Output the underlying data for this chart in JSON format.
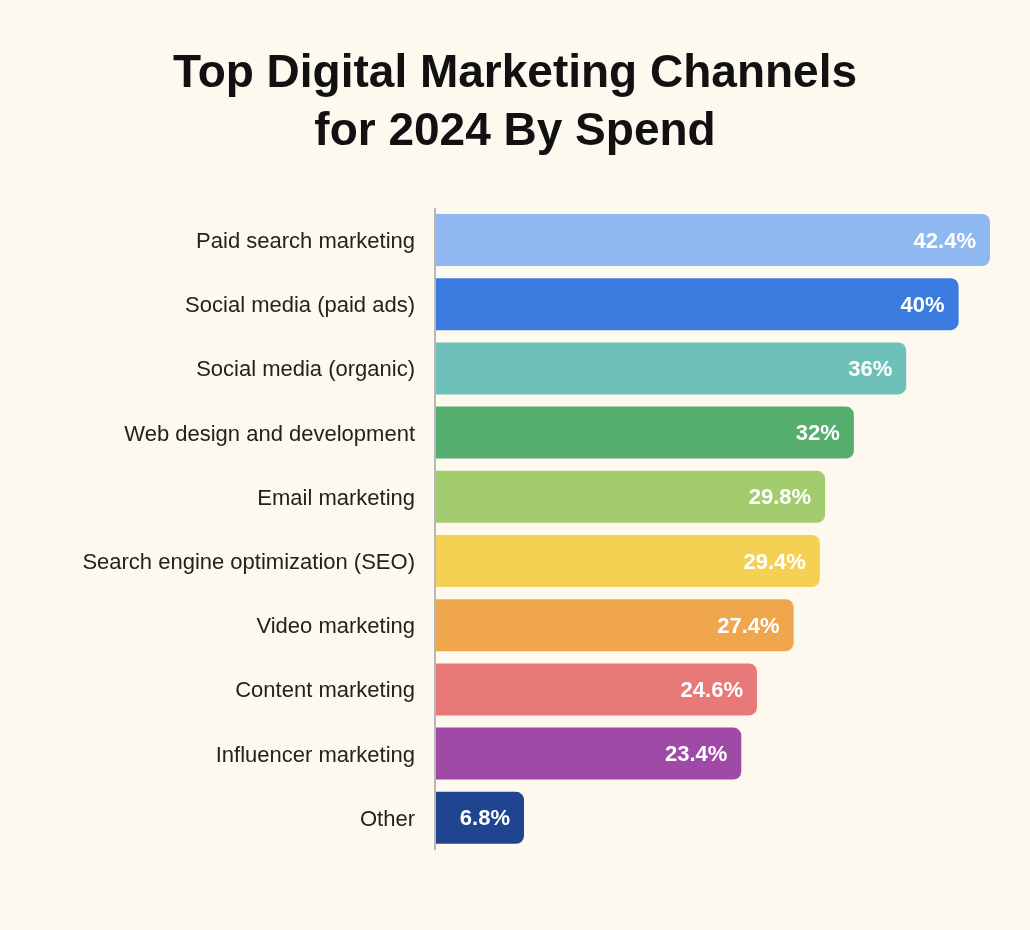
{
  "chart_data": {
    "type": "bar",
    "orientation": "horizontal",
    "title": "Top Digital Marketing Channels for 2024 By Spend",
    "categories": [
      "Paid search marketing",
      "Social media (paid ads)",
      "Social media (organic)",
      "Web design and development",
      "Email marketing",
      "Search engine optimization (SEO)",
      "Video marketing",
      "Content marketing",
      "Influencer marketing",
      "Other"
    ],
    "values": [
      42.4,
      40,
      36,
      32,
      29.8,
      29.4,
      27.4,
      24.6,
      23.4,
      6.8
    ],
    "value_labels": [
      "42.4%",
      "40%",
      "36%",
      "32%",
      "29.8%",
      "29.4%",
      "27.4%",
      "24.6%",
      "23.4%",
      "6.8%"
    ],
    "colors": [
      "#8fb8f0",
      "#3b7be0",
      "#6ec1b8",
      "#55ad6e",
      "#a3cc6e",
      "#f5d153",
      "#f0a64c",
      "#e77a78",
      "#a04aa8",
      "#1f4590"
    ],
    "grid": false,
    "legend": false
  }
}
